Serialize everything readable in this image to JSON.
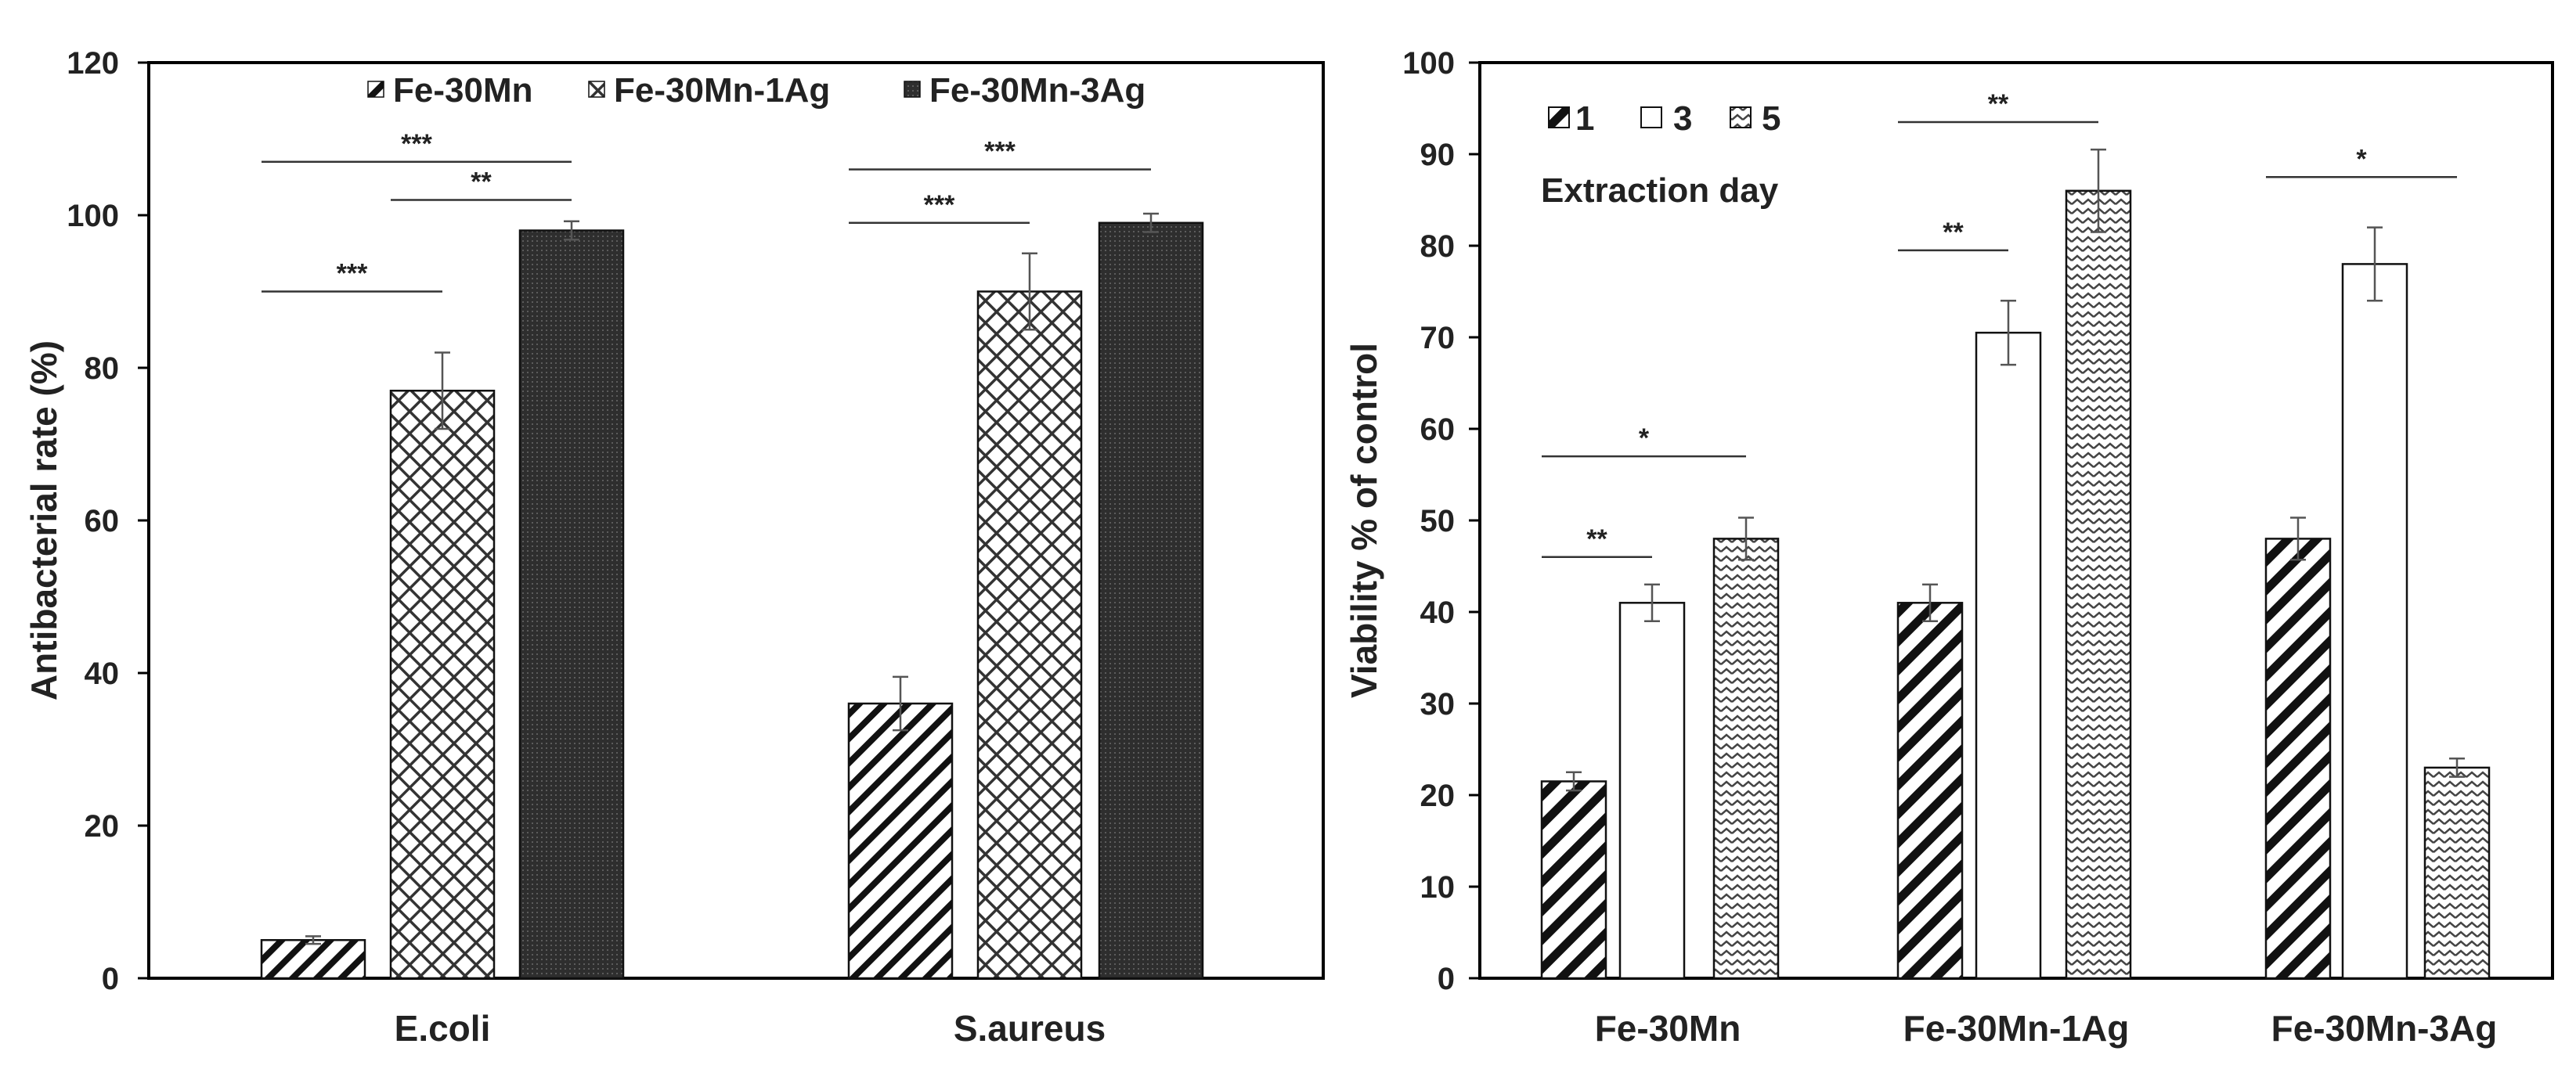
{
  "chart_data": [
    {
      "type": "bar",
      "title": "",
      "xlabel": "",
      "ylabel": "Antibacterial rate (%)",
      "ylim": [
        0,
        120
      ],
      "yticks": [
        0,
        20,
        40,
        60,
        80,
        100,
        120
      ],
      "ytick_labels": [
        "0",
        "20",
        "40",
        "60",
        "80",
        "100",
        "120"
      ],
      "categories": [
        "E.coli",
        "S.aureus"
      ],
      "legend_position": "top",
      "series": [
        {
          "name": "Fe-30Mn",
          "pattern": "diagonal",
          "values": [
            5,
            36
          ],
          "errors": [
            0.5,
            3.5
          ]
        },
        {
          "name": "Fe-30Mn-1Ag",
          "pattern": "crosshatch",
          "values": [
            77,
            90
          ],
          "errors": [
            5,
            5
          ]
        },
        {
          "name": "Fe-30Mn-3Ag",
          "pattern": "dense-dots",
          "values": [
            98,
            99
          ],
          "errors": [
            1.2,
            1.2
          ]
        }
      ],
      "significance": [
        {
          "category": 0,
          "from": 0,
          "to": 1,
          "y": 90,
          "label": "***"
        },
        {
          "category": 0,
          "from": 0,
          "to": 2,
          "y": 107,
          "label": "***"
        },
        {
          "category": 0,
          "from": 1,
          "to": 2,
          "y": 102,
          "label": "**"
        },
        {
          "category": 1,
          "from": 0,
          "to": 2,
          "y": 106,
          "label": "***"
        },
        {
          "category": 1,
          "from": 0,
          "to": 1,
          "y": 99,
          "label": "***"
        }
      ]
    },
    {
      "type": "bar",
      "title": "",
      "xlabel": "",
      "ylabel": "Viability  % of control",
      "ylim": [
        0,
        100
      ],
      "yticks": [
        0,
        10,
        20,
        30,
        40,
        50,
        60,
        70,
        80,
        90,
        100
      ],
      "ytick_labels": [
        "0",
        "10",
        "20",
        "30",
        "40",
        "50",
        "60",
        "70",
        "80",
        "90",
        "100"
      ],
      "categories": [
        "Fe-30Mn",
        "Fe-30Mn-1Ag",
        "Fe-30Mn-3Ag"
      ],
      "legend_position": "top-left",
      "legend_title": "Extraction day",
      "series": [
        {
          "name": "1",
          "pattern": "diagonal-thick",
          "values": [
            21.5,
            41,
            48
          ],
          "errors": [
            1,
            2,
            2.3
          ]
        },
        {
          "name": "3",
          "pattern": "white",
          "values": [
            41,
            70.5,
            78
          ],
          "errors": [
            2,
            3.5,
            4
          ]
        },
        {
          "name": "5",
          "pattern": "zigzag",
          "values": [
            48,
            86,
            23
          ],
          "errors": [
            2.3,
            4.5,
            1
          ]
        }
      ],
      "significance": [
        {
          "category": 0,
          "from": 0,
          "to": 1,
          "y": 46,
          "label": "**"
        },
        {
          "category": 0,
          "from": 0,
          "to": 2,
          "y": 57,
          "label": "*"
        },
        {
          "category": 1,
          "from": 0,
          "to": 2,
          "y": 93.5,
          "label": "**"
        },
        {
          "category": 1,
          "from": 0,
          "to": 1,
          "y": 79.5,
          "label": "**"
        },
        {
          "category": 2,
          "from": 0,
          "to": 2,
          "y": 87.5,
          "label": "*"
        }
      ]
    }
  ]
}
